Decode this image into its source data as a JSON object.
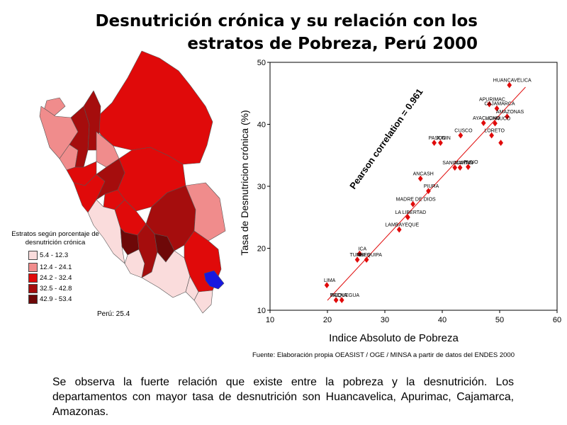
{
  "title_line1": "Desnutrición crónica y su relación con los",
  "title_line2": "estratos de Pobreza, Perú 2000",
  "legend": {
    "title_line1": "Estratos según porcentaje de",
    "title_line2": "desnutrición crónica",
    "items": [
      {
        "label": "5.4 - 12.3",
        "color": "#fadcdc"
      },
      {
        "label": "12.4 - 24.1",
        "color": "#f08c8c"
      },
      {
        "label": "24.2 - 32.4",
        "color": "#e00a0a"
      },
      {
        "label": "32.5 - 42.8",
        "color": "#a50d0d"
      },
      {
        "label": "42.9 - 53.4",
        "color": "#6e0808"
      }
    ],
    "lake_color": "#1818e0"
  },
  "peru_total": "Perú:  25.4",
  "chart_data": {
    "type": "scatter",
    "xlabel": "Indice Absoluto de Pobreza",
    "ylabel": "Tasa de Desnutricion crónica (%)",
    "xlim": [
      10,
      60
    ],
    "ylim": [
      10,
      50
    ],
    "xticks": [
      10,
      20,
      30,
      40,
      50,
      60
    ],
    "yticks": [
      10,
      20,
      30,
      40,
      50
    ],
    "annotation": "Pearson correlation = 0.961",
    "point_color": "#e00a0a",
    "trendline": {
      "from": [
        20,
        11.6
      ],
      "to": [
        54.5,
        46
      ]
    },
    "points": [
      {
        "label": "HUANCAVELICA",
        "x": 51.7,
        "y": 46.3
      },
      {
        "label": "APURIMAC",
        "x": 48.2,
        "y": 43.2
      },
      {
        "label": "CAJAMARCA",
        "x": 49.5,
        "y": 42.5
      },
      {
        "label": "AMAZONAS",
        "x": 51.3,
        "y": 41.2
      },
      {
        "label": "AYACUCHO",
        "x": 47.2,
        "y": 40.2
      },
      {
        "label": "HUANUCO",
        "x": 49.2,
        "y": 40.1
      },
      {
        "label": "LORETO",
        "x": 48.6,
        "y": 38.2
      },
      {
        "label": "",
        "x": 50.2,
        "y": 37.0
      },
      {
        "label": "CUSCO",
        "x": 43.2,
        "y": 38.2
      },
      {
        "label": "PASCO",
        "x": 38.6,
        "y": 37.0
      },
      {
        "label": "JUNIN",
        "x": 39.7,
        "y": 37.0
      },
      {
        "label": "SAN MARTIN",
        "x": 42.2,
        "y": 33.0
      },
      {
        "label": "UCAYALI",
        "x": 43.1,
        "y": 33.0
      },
      {
        "label": "PUNO",
        "x": 44.5,
        "y": 33.1
      },
      {
        "label": "ANCASH",
        "x": 36.2,
        "y": 31.2
      },
      {
        "label": "PIURA",
        "x": 37.6,
        "y": 29.2
      },
      {
        "label": "MADRE DE DIOS",
        "x": 34.9,
        "y": 27.1
      },
      {
        "label": "LA LIBERTAD",
        "x": 34.0,
        "y": 25.0
      },
      {
        "label": "LAMBAYEQUE",
        "x": 32.5,
        "y": 23.0
      },
      {
        "label": "ICA",
        "x": 25.6,
        "y": 19.1
      },
      {
        "label": "TUMBES",
        "x": 25.2,
        "y": 18.1
      },
      {
        "label": "AREQUIPA",
        "x": 26.8,
        "y": 18.1
      },
      {
        "label": "LIMA",
        "x": 19.9,
        "y": 14.0
      },
      {
        "label": "TACNA",
        "x": 21.5,
        "y": 11.6
      },
      {
        "label": "MOQUEGUA",
        "x": 22.5,
        "y": 11.6
      }
    ]
  },
  "source": "Fuente: Elaboración propia OEASIST / OGE / MINSA a partir de datos del ENDES 2000",
  "body_text": "Se observa la fuerte relación que existe entre la pobreza y la desnutrición. Los departamentos con mayor tasa de desnutrición son Huancavelica, Apurimac, Cajamarca, Amazonas."
}
